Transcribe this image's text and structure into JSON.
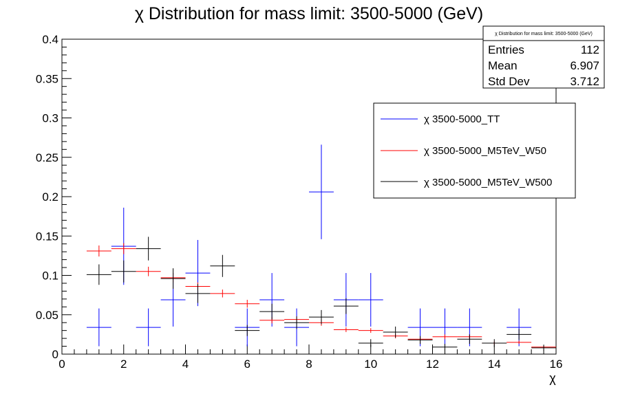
{
  "chart_data": {
    "type": "scatter",
    "title": "χ Distribution for mass limit: 3500-5000 (GeV)",
    "xlabel": "χ",
    "ylabel": "",
    "xlim": [
      0,
      16
    ],
    "ylim": [
      0,
      0.4
    ],
    "x_ticks": [
      "0",
      "2",
      "4",
      "6",
      "8",
      "10",
      "12",
      "14",
      "16"
    ],
    "y_ticks": [
      "0",
      "0.05",
      "0.1",
      "0.15",
      "0.2",
      "0.25",
      "0.3",
      "0.35",
      "0.4"
    ],
    "bin_edges": [
      0.8,
      1.6,
      2.4,
      3.2,
      4.0,
      4.8,
      5.6,
      6.4,
      7.2,
      8.0,
      8.8,
      9.6,
      10.4,
      11.2,
      12.0,
      12.8,
      13.6,
      14.4,
      15.2,
      16.0
    ],
    "grid": false,
    "legend_position": "top-right",
    "series": [
      {
        "name": "χ 3500-5000_TT",
        "color": "#0000ff",
        "values": [
          0.034,
          0.137,
          0.034,
          0.069,
          0.103,
          null,
          0.034,
          0.069,
          0.034,
          0.206,
          0.069,
          0.069,
          null,
          0.034,
          0.034,
          0.034,
          null,
          0.034,
          null
        ],
        "errors": [
          0.024,
          0.049,
          0.024,
          0.034,
          0.042,
          null,
          0.024,
          0.034,
          0.024,
          0.06,
          0.034,
          0.034,
          null,
          0.024,
          0.024,
          0.024,
          null,
          0.024,
          null
        ]
      },
      {
        "name": "χ 3500-5000_M5TeV_W50",
        "color": "#ff0000",
        "values": [
          0.131,
          0.134,
          0.105,
          0.097,
          0.086,
          0.077,
          0.064,
          0.043,
          0.044,
          0.04,
          0.031,
          0.03,
          0.023,
          0.019,
          0.022,
          0.022,
          0.014,
          0.015,
          0.009
        ],
        "errors": [
          0.007,
          0.007,
          0.006,
          0.006,
          0.005,
          0.005,
          0.005,
          0.004,
          0.004,
          0.004,
          0.003,
          0.003,
          0.003,
          0.003,
          0.003,
          0.003,
          0.002,
          0.002,
          0.002
        ]
      },
      {
        "name": "χ 3500-5000_M5TeV_W500",
        "color": "#000000",
        "values": [
          0.101,
          0.105,
          0.134,
          0.096,
          0.077,
          0.112,
          0.03,
          0.054,
          0.04,
          0.047,
          0.061,
          0.014,
          0.028,
          0.018,
          0.009,
          0.019,
          0.014,
          0.025,
          0.008
        ],
        "errors": [
          0.013,
          0.014,
          0.015,
          0.013,
          0.012,
          0.014,
          0.007,
          0.01,
          0.008,
          0.009,
          0.01,
          0.005,
          0.007,
          0.005,
          0.004,
          0.006,
          0.005,
          0.007,
          0.004
        ]
      }
    ]
  },
  "stats_box": {
    "title": "χ Distribution for mass limit: 3500-5000 (GeV)",
    "rows": [
      {
        "label": "Entries",
        "value": "112"
      },
      {
        "label": "Mean",
        "value": "6.907"
      },
      {
        "label": "Std Dev",
        "value": "3.712"
      }
    ]
  }
}
